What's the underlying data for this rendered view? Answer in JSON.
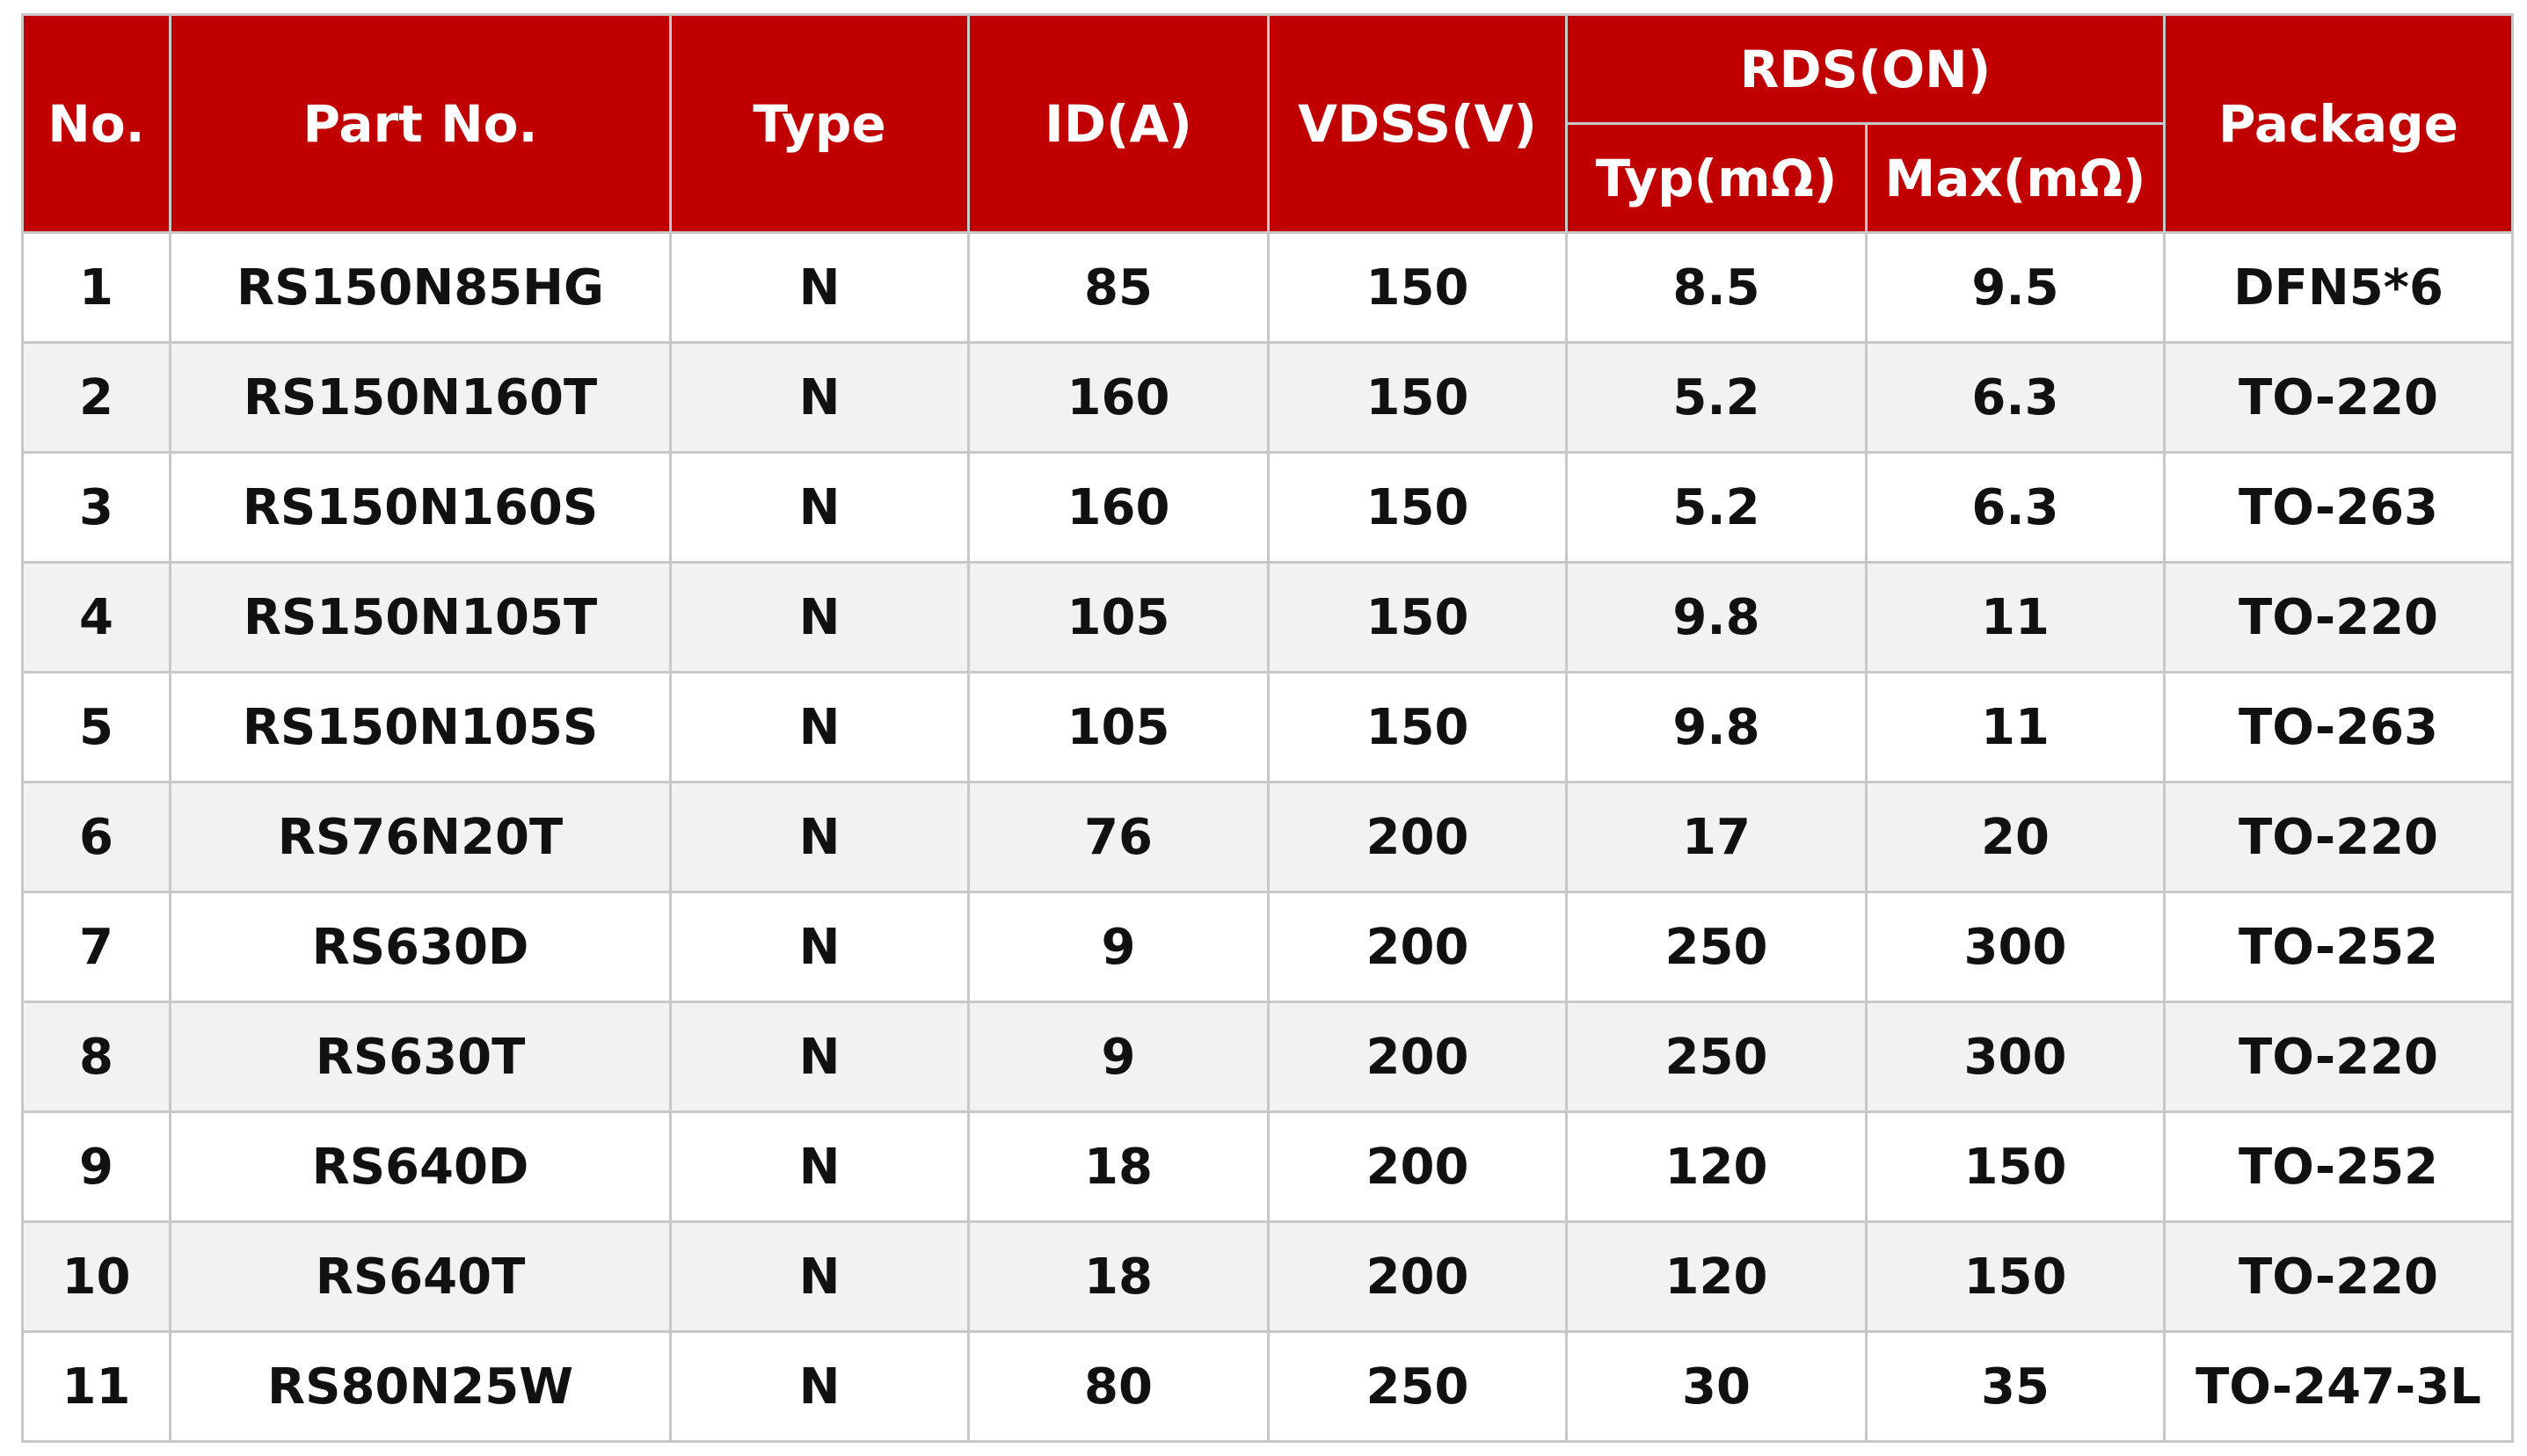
{
  "table": {
    "columns": [
      "No.",
      "Part No.",
      "Type",
      "ID(A)",
      "VDSS(V)",
      "Package"
    ],
    "group": {
      "label": "RDS(ON)",
      "columns": [
        "Typ(mΩ)",
        "Max(mΩ)"
      ]
    },
    "rows": [
      [
        "1",
        "RS150N85HG",
        "N",
        "85",
        "150",
        "8.5",
        "9.5",
        "DFN5*6"
      ],
      [
        "2",
        "RS150N160T",
        "N",
        "160",
        "150",
        "5.2",
        "6.3",
        "TO-220"
      ],
      [
        "3",
        "RS150N160S",
        "N",
        "160",
        "150",
        "5.2",
        "6.3",
        "TO-263"
      ],
      [
        "4",
        "RS150N105T",
        "N",
        "105",
        "150",
        "9.8",
        "11",
        "TO-220"
      ],
      [
        "5",
        "RS150N105S",
        "N",
        "105",
        "150",
        "9.8",
        "11",
        "TO-263"
      ],
      [
        "6",
        "RS76N20T",
        "N",
        "76",
        "200",
        "17",
        "20",
        "TO-220"
      ],
      [
        "7",
        "RS630D",
        "N",
        "9",
        "200",
        "250",
        "300",
        "TO-252"
      ],
      [
        "8",
        "RS630T",
        "N",
        "9",
        "200",
        "250",
        "300",
        "TO-220"
      ],
      [
        "9",
        "RS640D",
        "N",
        "18",
        "200",
        "120",
        "150",
        "TO-252"
      ],
      [
        "10",
        "RS640T",
        "N",
        "18",
        "200",
        "120",
        "150",
        "TO-220"
      ],
      [
        "11",
        "RS80N25W",
        "N",
        "80",
        "250",
        "30",
        "35",
        "TO-247-3L"
      ]
    ]
  }
}
